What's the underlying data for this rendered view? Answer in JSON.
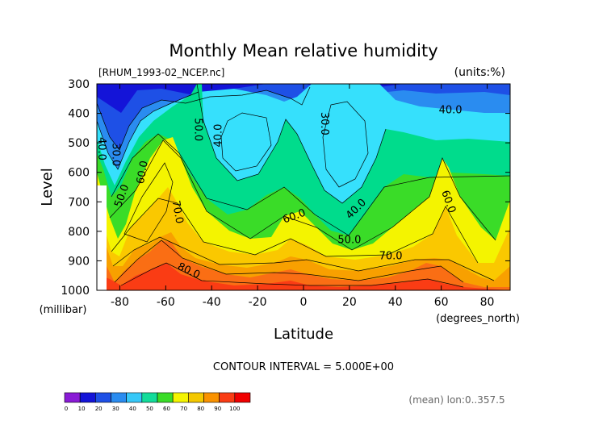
{
  "chart_data": {
    "type": "contour",
    "title": "Monthly Mean relative humidity",
    "source_label": "[RHUM_1993-02_NCEP.nc]",
    "units_label": "(units:%)",
    "xlabel": "Latitude",
    "x_units": "(degrees_north)",
    "ylabel": "Level",
    "y_units": "(millibar)",
    "x_ticks": [
      -80,
      -60,
      -40,
      -20,
      0,
      20,
      40,
      60,
      80
    ],
    "x_tick_labels": [
      "-80",
      "-60",
      "-40",
      "-20",
      "0",
      "20",
      "40",
      "60",
      "80"
    ],
    "y_ticks": [
      300,
      400,
      500,
      600,
      700,
      800,
      900,
      1000
    ],
    "y_tick_labels": [
      "300",
      "400",
      "500",
      "600",
      "700",
      "800",
      "900",
      "1000"
    ],
    "xlim": [
      -90,
      90
    ],
    "ylim": [
      1000,
      300
    ],
    "contour_interval_text": "CONTOUR INTERVAL = 5.000E+00",
    "footnote": "(mean) lon:0..357.5",
    "contour_labels": [
      {
        "text": "50.0",
        "lat": -46,
        "level": 455,
        "angle": 90
      },
      {
        "text": "40.0",
        "lat": -37,
        "level": 475,
        "angle": -90
      },
      {
        "text": "30.0",
        "lat": 9,
        "level": 435,
        "angle": 90
      },
      {
        "text": "40.0",
        "lat": 64,
        "level": 390,
        "angle": 0
      },
      {
        "text": "40.0",
        "lat": -88,
        "level": 520,
        "angle": 90
      },
      {
        "text": "30.0",
        "lat": -82,
        "level": 540,
        "angle": 90
      },
      {
        "text": "60.0",
        "lat": -70,
        "level": 600,
        "angle": -80
      },
      {
        "text": "50.0",
        "lat": -79,
        "level": 680,
        "angle": -70
      },
      {
        "text": "70.0",
        "lat": -55,
        "level": 735,
        "angle": 80
      },
      {
        "text": "60.0",
        "lat": -4,
        "level": 750,
        "angle": -20
      },
      {
        "text": "40.0",
        "lat": 23,
        "level": 725,
        "angle": -45
      },
      {
        "text": "50.0",
        "lat": 20,
        "level": 830,
        "angle": 0
      },
      {
        "text": "60.0",
        "lat": 63,
        "level": 700,
        "angle": 70
      },
      {
        "text": "70.0",
        "lat": 38,
        "level": 885,
        "angle": 0
      },
      {
        "text": "80.0",
        "lat": -50,
        "level": 935,
        "angle": 25
      }
    ],
    "colorbar": {
      "ticks": [
        "0",
        "10",
        "20",
        "30",
        "40",
        "50",
        "60",
        "70",
        "80",
        "90",
        "100"
      ],
      "colors": [
        "#8a1bd6",
        "#1414d8",
        "#1e50e6",
        "#2a8cf0",
        "#36c8f8",
        "#12dc9a",
        "#3adc28",
        "#f4f400",
        "#f4c800",
        "#fa9200",
        "#fa3c14",
        "#f00000"
      ]
    },
    "fill_colors": {
      "lt20": "#1414d8",
      "lt30": "#1e50e6",
      "lt40": "#2a8cf0",
      "lt50": "#36e0fc",
      "lt60": "#00dc8c",
      "lt65": "#3adc28",
      "lt70": "#f4f400",
      "lt75": "#fac800",
      "lt80": "#f8a000",
      "lt90": "#fa6e14",
      "gt90": "#fa3c14"
    }
  }
}
